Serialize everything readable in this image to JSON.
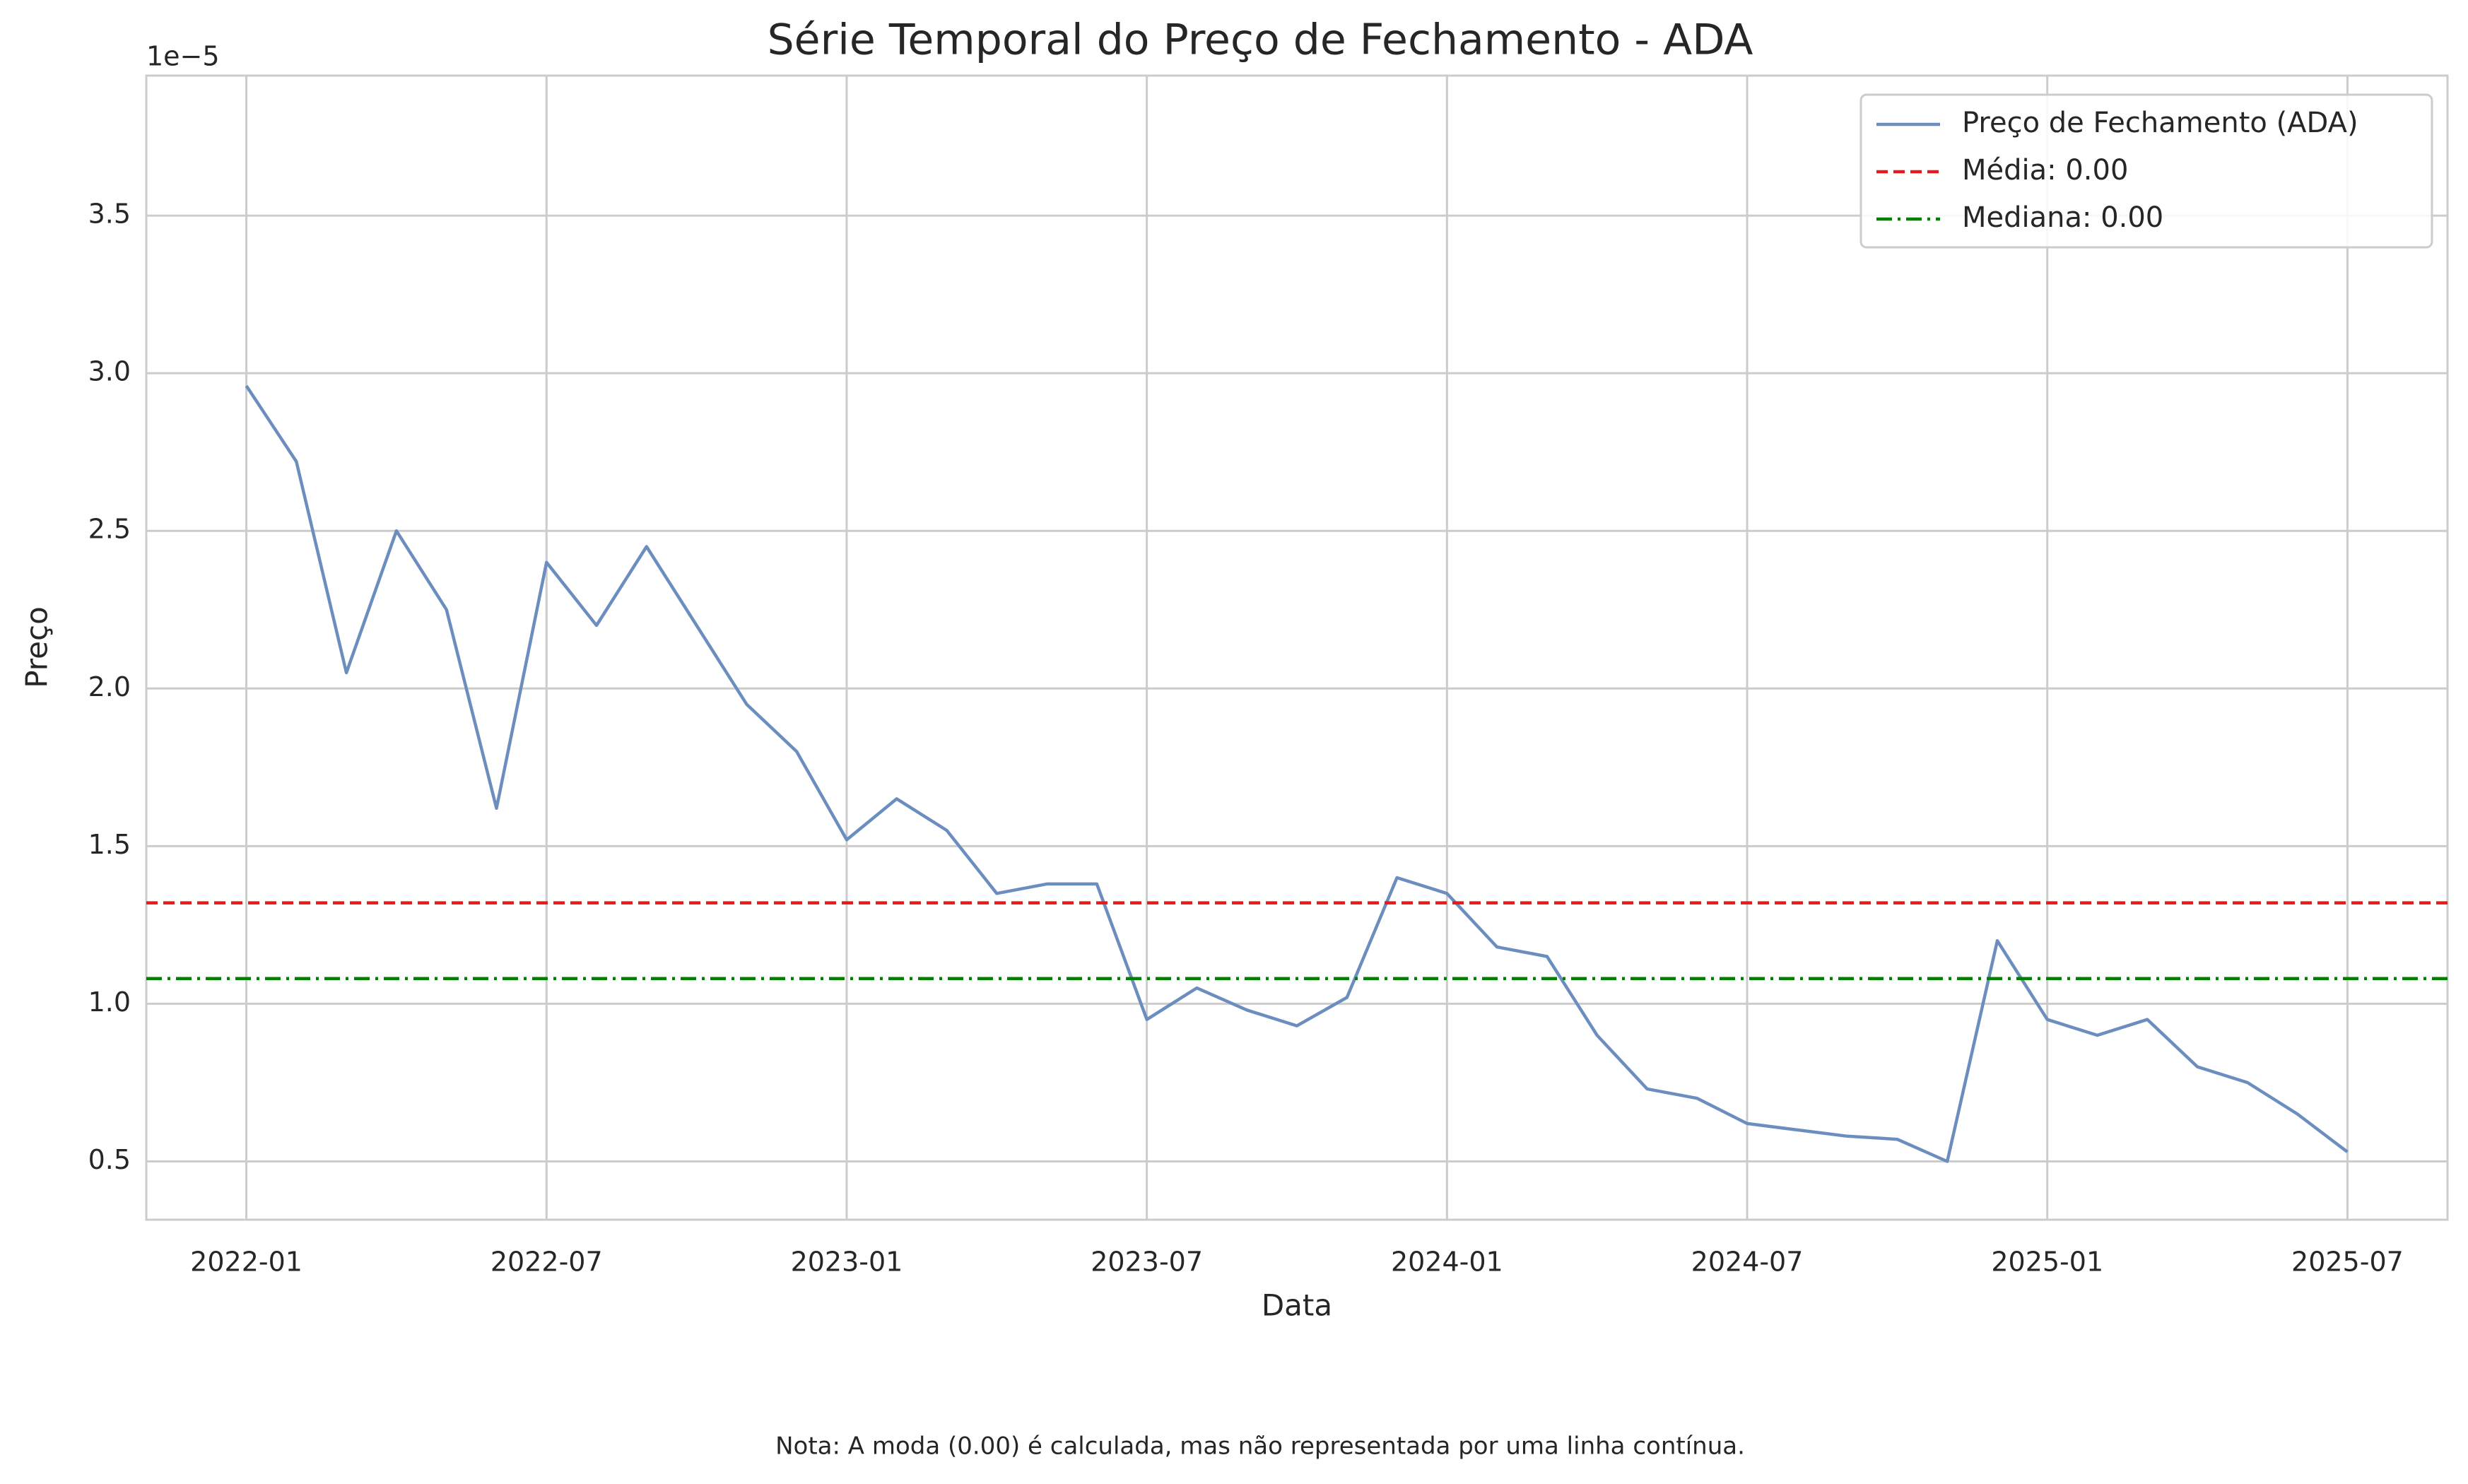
{
  "chart_data": {
    "type": "line",
    "title": "Série Temporal do Preço de Fechamento - ADA",
    "x_label": "Data",
    "y_label": "Preço",
    "y_offset_label": "1e−5",
    "note": "Nota: A moda (0.00) é calculada, mas não representada por uma linha contínua.",
    "x": [
      "2022-01",
      "2022-02",
      "2022-03",
      "2022-04",
      "2022-05",
      "2022-06",
      "2022-07",
      "2022-08",
      "2022-09",
      "2022-10",
      "2022-11",
      "2022-12",
      "2023-01",
      "2023-02",
      "2023-03",
      "2023-04",
      "2023-05",
      "2023-06",
      "2023-07",
      "2023-08",
      "2023-09",
      "2023-10",
      "2023-11",
      "2023-12",
      "2024-01",
      "2024-02",
      "2024-03",
      "2024-04",
      "2024-05",
      "2024-06",
      "2024-07",
      "2024-08",
      "2024-09",
      "2024-10",
      "2024-11",
      "2024-12",
      "2025-01",
      "2025-02",
      "2025-03",
      "2025-04",
      "2025-05",
      "2025-06",
      "2025-07"
    ],
    "series": [
      {
        "name": "Preço de Fechamento (ADA)",
        "color": "#6c8ebf",
        "values": [
          2.96,
          2.72,
          2.05,
          2.5,
          2.25,
          1.62,
          2.4,
          2.2,
          2.45,
          2.2,
          1.95,
          1.8,
          1.52,
          1.65,
          1.55,
          1.35,
          1.38,
          1.38,
          0.95,
          1.05,
          0.98,
          0.93,
          1.02,
          1.4,
          1.35,
          1.18,
          1.15,
          0.9,
          0.73,
          0.7,
          0.62,
          0.6,
          0.58,
          0.57,
          0.5,
          1.2,
          0.95,
          0.9,
          0.95,
          0.8,
          0.75,
          0.65,
          0.53
        ]
      }
    ],
    "reference_lines": [
      {
        "name": "Média: 0.00",
        "value": 1.32,
        "color": "#e41a1c",
        "style": "dashed"
      },
      {
        "name": "Mediana: 0.00",
        "value": 1.08,
        "color": "#008000",
        "style": "dashdot"
      }
    ],
    "xlim": [
      "2021-11",
      "2025-09"
    ],
    "xticks": [
      "2022-01",
      "2022-07",
      "2023-01",
      "2023-07",
      "2024-01",
      "2024-07",
      "2025-01",
      "2025-07"
    ],
    "ylim": [
      0.315,
      3.944
    ],
    "yticks": [
      0.5,
      {
        "value": 1.0,
        "label": "1.0"
      },
      1.5,
      {
        "value": 2.0,
        "label": "2.0"
      },
      2.5,
      {
        "value": 3.0,
        "label": "3.0"
      },
      3.5
    ],
    "grid": true,
    "legend": "upper right"
  }
}
